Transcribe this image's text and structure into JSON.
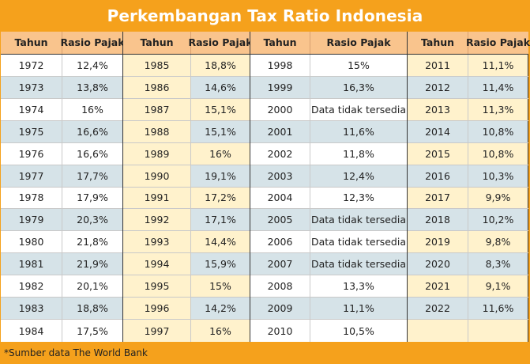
{
  "title": "Perkembangan Tax Ratio Indonesia",
  "headers": {
    "year": "Tahun",
    "ratio": "Rasio Pajak"
  },
  "groups": [
    {
      "rows": [
        {
          "year": "1972",
          "ratio": "12,4%"
        },
        {
          "year": "1973",
          "ratio": "13,8%"
        },
        {
          "year": "1974",
          "ratio": "16%"
        },
        {
          "year": "1975",
          "ratio": "16,6%"
        },
        {
          "year": "1976",
          "ratio": "16,6%"
        },
        {
          "year": "1977",
          "ratio": "17,7%"
        },
        {
          "year": "1978",
          "ratio": "17,9%"
        },
        {
          "year": "1979",
          "ratio": "20,3%"
        },
        {
          "year": "1980",
          "ratio": "21,8%"
        },
        {
          "year": "1981",
          "ratio": "21,9%"
        },
        {
          "year": "1982",
          "ratio": "20,1%"
        },
        {
          "year": "1983",
          "ratio": "18,8%"
        },
        {
          "year": "1984",
          "ratio": "17,5%"
        }
      ]
    },
    {
      "rows": [
        {
          "year": "1985",
          "ratio": "18,8%"
        },
        {
          "year": "1986",
          "ratio": "14,6%"
        },
        {
          "year": "1987",
          "ratio": "15,1%"
        },
        {
          "year": "1988",
          "ratio": "15,1%"
        },
        {
          "year": "1989",
          "ratio": "16%"
        },
        {
          "year": "1990",
          "ratio": "19,1%"
        },
        {
          "year": "1991",
          "ratio": "17,2%"
        },
        {
          "year": "1992",
          "ratio": "17,1%"
        },
        {
          "year": "1993",
          "ratio": "14,4%"
        },
        {
          "year": "1994",
          "ratio": "15,9%"
        },
        {
          "year": "1995",
          "ratio": "15%"
        },
        {
          "year": "1996",
          "ratio": "14,2%"
        },
        {
          "year": "1997",
          "ratio": "16%"
        }
      ]
    },
    {
      "rows": [
        {
          "year": "1998",
          "ratio": "15%"
        },
        {
          "year": "1999",
          "ratio": "16,3%"
        },
        {
          "year": "2000",
          "ratio": "Data tidak tersedia"
        },
        {
          "year": "2001",
          "ratio": "11,6%"
        },
        {
          "year": "2002",
          "ratio": "11,8%"
        },
        {
          "year": "2003",
          "ratio": "12,4%"
        },
        {
          "year": "2004",
          "ratio": "12,3%"
        },
        {
          "year": "2005",
          "ratio": "Data tidak tersedia"
        },
        {
          "year": "2006",
          "ratio": "Data tidak tersedia"
        },
        {
          "year": "2007",
          "ratio": "Data tidak tersedia"
        },
        {
          "year": "2008",
          "ratio": "13,3%"
        },
        {
          "year": "2009",
          "ratio": "11,1%"
        },
        {
          "year": "2010",
          "ratio": "10,5%"
        }
      ]
    },
    {
      "rows": [
        {
          "year": "2011",
          "ratio": "11,1%"
        },
        {
          "year": "2012",
          "ratio": "11,4%"
        },
        {
          "year": "2013",
          "ratio": "11,3%"
        },
        {
          "year": "2014",
          "ratio": "10,8%"
        },
        {
          "year": "2015",
          "ratio": "10,8%"
        },
        {
          "year": "2016",
          "ratio": "10,3%"
        },
        {
          "year": "2017",
          "ratio": "9,9%"
        },
        {
          "year": "2018",
          "ratio": "10,2%"
        },
        {
          "year": "2019",
          "ratio": "9,8%"
        },
        {
          "year": "2020",
          "ratio": "8,3%"
        },
        {
          "year": "2021",
          "ratio": "9,1%"
        },
        {
          "year": "2022",
          "ratio": "11,6%"
        },
        {
          "year": "",
          "ratio": ""
        }
      ]
    }
  ],
  "footer": "*Sumber data The World Bank",
  "colors": {
    "frame_orange": "#f5a11c",
    "header_peach": "#f9c48d",
    "row_white": "#ffffff",
    "row_blue": "#d6e3e8",
    "row_cream": "#fff2cc"
  }
}
